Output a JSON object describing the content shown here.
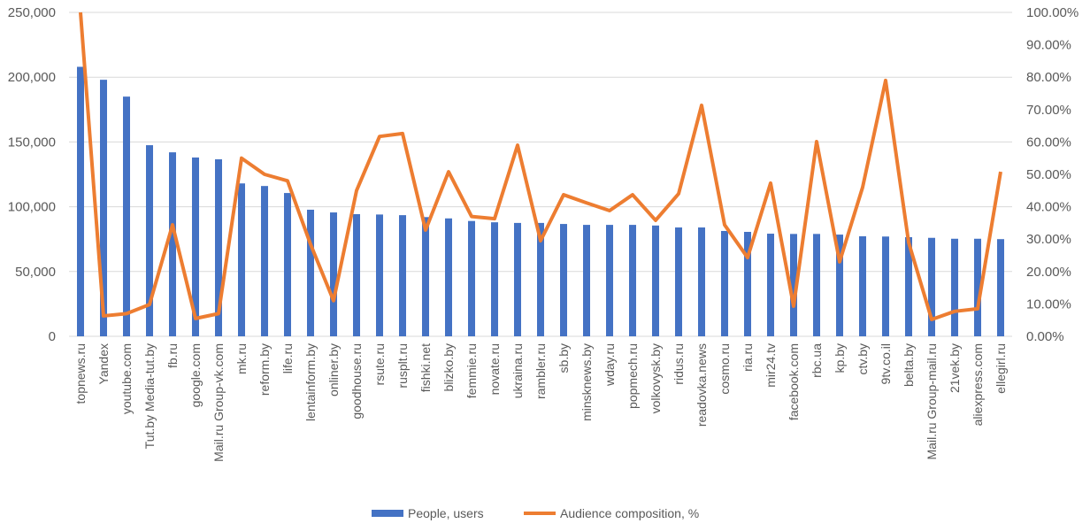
{
  "chart_data": {
    "type": "bar+line",
    "title": "",
    "categories": [
      "topnews.ru",
      "Yandex",
      "youtube.com",
      "Tut.by Media-tut.by",
      "fb.ru",
      "google.com",
      "Mail.ru Group-vk.com",
      "mk.ru",
      "reform.by",
      "life.ru",
      "lentainform.by",
      "onliner.by",
      "goodhouse.ru",
      "rsute.ru",
      "rusplt.ru",
      "fishki.net",
      "blizko.by",
      "femmie.ru",
      "novate.ru",
      "ukraina.ru",
      "rambler.ru",
      "sb.by",
      "minsknews.by",
      "wday.ru",
      "popmech.ru",
      "volkovysk.by",
      "ridus.ru",
      "readovka.news",
      "cosmo.ru",
      "ria.ru",
      "mir24.tv",
      "facebook.com",
      "rbc.ua",
      "kp.by",
      "ctv.by",
      "9tv.co.il",
      "belta.by",
      "Mail.ru Group-mail.ru",
      "21vek.by",
      "aliexpress.com",
      "ellegirl.ru"
    ],
    "series": [
      {
        "name": "People, users",
        "type": "bar",
        "axis": "left",
        "color": "#4472C4",
        "values": [
          208000,
          198000,
          185000,
          147500,
          142000,
          138000,
          136600,
          118000,
          116000,
          110600,
          97700,
          95600,
          94300,
          94000,
          93500,
          92000,
          91000,
          89000,
          88000,
          87500,
          87500,
          86700,
          86000,
          86000,
          86000,
          85500,
          84000,
          84000,
          81300,
          80600,
          79200,
          79000,
          79000,
          78500,
          77200,
          77000,
          76500,
          76000,
          75300,
          75300,
          75000
        ]
      },
      {
        "name": "Audience composition, %",
        "type": "line",
        "axis": "right",
        "color": "#ED7D31",
        "values": [
          100,
          6.3,
          7,
          9.8,
          34.4,
          5.5,
          7,
          55,
          50,
          48,
          28.4,
          11,
          45,
          61.7,
          62.6,
          32.8,
          50.8,
          37,
          36.3,
          59,
          29.5,
          43.7,
          41.2,
          38.8,
          43.7,
          35.8,
          44,
          71.3,
          34.4,
          24.3,
          47.3,
          9.3,
          60.1,
          23,
          46,
          79,
          29,
          5.2,
          7.7,
          8.5,
          50.8
        ]
      }
    ],
    "y_left": {
      "range": [
        0,
        250000
      ],
      "ticks": [
        "0",
        "50,000",
        "100,000",
        "150,000",
        "200,000",
        "250,000"
      ]
    },
    "y_right": {
      "range": [
        0,
        100
      ],
      "ticks": [
        "0.00%",
        "10.00%",
        "20.00%",
        "30.00%",
        "40.00%",
        "50.00%",
        "60.00%",
        "70.00%",
        "80.00%",
        "90.00%",
        "100.00%"
      ]
    },
    "grid": true,
    "legend": {
      "placement": "bottom",
      "entries": [
        "People, users",
        "Audience composition, %"
      ]
    }
  }
}
